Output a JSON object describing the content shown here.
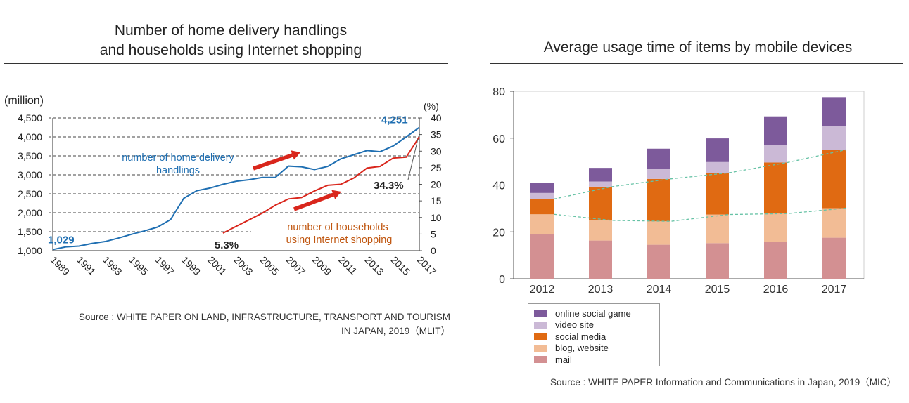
{
  "left": {
    "title_line1": "Number of home delivery handlings",
    "title_line2": "and households using Internet shopping",
    "source_line1": "Source : WHITE PAPER ON LAND, INFRASTRUCTURE, TRANSPORT AND TOURISM",
    "source_line2": "IN JAPAN, 2019（MLIT）"
  },
  "right": {
    "title": "Average usage time of items by mobile devices",
    "source": "Source : WHITE PAPER Information and Communications in Japan, 2019（MIC）"
  },
  "chart_data": [
    {
      "type": "line",
      "title": "Number of home delivery handlings and households using Internet shopping",
      "y_unit_left": "(million)",
      "y_unit_right": "(%)",
      "ylim_left": [
        1000,
        4500
      ],
      "ylim_right": [
        0,
        40
      ],
      "yticks_left": [
        "1,000",
        "1,500",
        "2,000",
        "2,500",
        "3,000",
        "3,500",
        "4,000",
        "4,500"
      ],
      "yticks_right": [
        "0",
        "5",
        "10",
        "15",
        "20",
        "25",
        "30",
        "35",
        "40"
      ],
      "xticks": [
        "1989",
        "1991",
        "1993",
        "1995",
        "1997",
        "1999",
        "2001",
        "2003",
        "2005",
        "2007",
        "2009",
        "2011",
        "2013",
        "2015",
        "2017"
      ],
      "colors": {
        "delivery": "#1f6fb2",
        "households": "#d9261c",
        "arrow": "#d9261c"
      },
      "series": [
        {
          "name": "number of home delivery handlings",
          "label_line1": "number of home delivery",
          "label_line2": "handlings",
          "axis": "left",
          "x": [
            1989,
            1990,
            1991,
            1992,
            1993,
            1994,
            1995,
            1996,
            1997,
            1998,
            1999,
            2000,
            2001,
            2002,
            2003,
            2004,
            2005,
            2006,
            2007,
            2008,
            2009,
            2010,
            2011,
            2012,
            2013,
            2014,
            2015,
            2016,
            2017
          ],
          "values": [
            1029,
            1100,
            1120,
            1190,
            1240,
            1330,
            1430,
            1520,
            1620,
            1820,
            2380,
            2580,
            2650,
            2750,
            2830,
            2870,
            2930,
            2930,
            3230,
            3210,
            3140,
            3220,
            3420,
            3530,
            3640,
            3610,
            3760,
            4000,
            4251
          ],
          "start_label": "1,029",
          "end_label": "4,251"
        },
        {
          "name": "number of households using Internet shopping",
          "label_line1": "number of households",
          "label_line2": "using Internet shopping",
          "axis": "right",
          "x": [
            2002,
            2003,
            2004,
            2005,
            2006,
            2007,
            2008,
            2009,
            2010,
            2011,
            2012,
            2013,
            2014,
            2015,
            2016,
            2017
          ],
          "values": [
            5.3,
            7.3,
            9.3,
            11.3,
            13.7,
            15.6,
            16.0,
            18.0,
            19.7,
            20.0,
            21.9,
            24.9,
            25.4,
            27.9,
            28.2,
            34.3
          ],
          "start_label": "5.3%",
          "end_label": "34.3%"
        }
      ]
    },
    {
      "type": "bar",
      "stacked": true,
      "title": "Average usage time of items by mobile devices",
      "categories": [
        "2012",
        "2013",
        "2014",
        "2015",
        "2016",
        "2017"
      ],
      "ylim": [
        0,
        80
      ],
      "yticks": [
        0,
        20,
        40,
        60,
        80
      ],
      "legend_position": "bottom-left",
      "series": [
        {
          "name": "mail",
          "color": "#d39092",
          "values": [
            19.0,
            16.3,
            14.5,
            15.2,
            15.6,
            17.5
          ]
        },
        {
          "name": "blog, website",
          "color": "#f2bc95",
          "values": [
            8.5,
            8.6,
            10.0,
            12.2,
            12.2,
            12.6
          ]
        },
        {
          "name": "social media",
          "color": "#e06a12",
          "values": [
            6.5,
            14.4,
            18.1,
            17.8,
            21.8,
            24.9
          ]
        },
        {
          "name": "video site",
          "color": "#cbb9d6",
          "values": [
            2.6,
            2.2,
            4.3,
            4.6,
            7.6,
            10.1
          ]
        },
        {
          "name": "online social game",
          "color": "#7d5a9b",
          "values": [
            4.3,
            5.8,
            8.6,
            10.1,
            12.1,
            12.4
          ]
        }
      ]
    }
  ]
}
